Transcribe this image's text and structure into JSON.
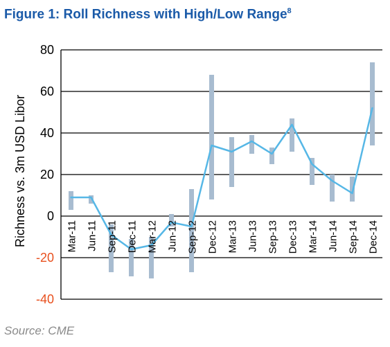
{
  "figure": {
    "title": "Figure 1: Roll Richness with High/Low Range",
    "title_footnote": "8",
    "source": "Source: CME"
  },
  "chart_data": {
    "type": "line",
    "title": "Figure 1: Roll Richness with High/Low Range",
    "xlabel": "",
    "ylabel": "Richness vs. 3m USD Libor",
    "ylim": [
      -40,
      80
    ],
    "yticks": [
      -40,
      -20,
      0,
      20,
      40,
      60,
      80
    ],
    "grid": "horizontal",
    "categories": [
      "Mar-11",
      "Jun-11",
      "Sep-11",
      "Dec-11",
      "Mar-12",
      "Jun-12",
      "Sep-12",
      "Dec-12",
      "Mar-13",
      "Jun-13",
      "Sep-13",
      "Dec-13",
      "Mar-14",
      "Jun-14",
      "Sep-14",
      "Dec-14"
    ],
    "series": [
      {
        "values": [
          9,
          9,
          -9,
          -16,
          -14,
          -3,
          -5,
          34,
          31,
          36,
          30,
          44,
          25,
          17,
          11,
          52
        ]
      }
    ],
    "ranges": {
      "high": [
        12,
        10,
        -4,
        -11,
        -10,
        1,
        13,
        68,
        38,
        39,
        33,
        47,
        28,
        20,
        19,
        74
      ],
      "low": [
        3,
        6,
        -27,
        -29,
        -30,
        -5,
        -27,
        8,
        14,
        30,
        25,
        31,
        15,
        7,
        7,
        34
      ]
    },
    "colors": {
      "line": "#56b7e6",
      "range_bar": "#a8bcd0",
      "title": "#1a5aa8",
      "negative_tick": "#e8501e",
      "axis": "#000000"
    }
  }
}
